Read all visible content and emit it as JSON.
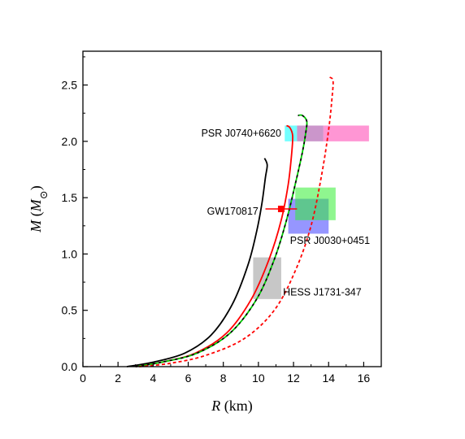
{
  "chart_data": {
    "type": "line",
    "title": "",
    "xlabel": "R (km)",
    "ylabel": "M (M⊙)",
    "xlim": [
      0,
      17
    ],
    "ylim": [
      0,
      2.8
    ],
    "xticks": [
      0,
      2,
      4,
      6,
      8,
      10,
      12,
      14,
      16
    ],
    "yticks": [
      0.0,
      0.5,
      1.0,
      1.5,
      2.0,
      2.5
    ],
    "xtick_labels": [
      "0",
      "2",
      "4",
      "6",
      "8",
      "10",
      "12",
      "14",
      "16"
    ],
    "ytick_labels": [
      "0.0",
      "0.5",
      "1.0",
      "1.5",
      "2.0",
      "2.5"
    ],
    "grid": false,
    "series": [
      {
        "color": "#000000",
        "style": "solid",
        "points": [
          [
            2.5,
            0.0
          ],
          [
            4.0,
            0.04
          ],
          [
            5.8,
            0.12
          ],
          [
            7.3,
            0.28
          ],
          [
            8.5,
            0.55
          ],
          [
            9.4,
            0.9
          ],
          [
            9.9,
            1.2
          ],
          [
            10.2,
            1.45
          ],
          [
            10.4,
            1.68
          ],
          [
            10.5,
            1.79
          ],
          [
            10.35,
            1.85
          ]
        ]
      },
      {
        "color": "#ff0000",
        "style": "solid",
        "points": [
          [
            3.0,
            0.0
          ],
          [
            4.5,
            0.04
          ],
          [
            6.4,
            0.12
          ],
          [
            8.2,
            0.3
          ],
          [
            9.6,
            0.6
          ],
          [
            10.6,
            0.95
          ],
          [
            11.3,
            1.3
          ],
          [
            11.7,
            1.62
          ],
          [
            11.9,
            1.9
          ],
          [
            11.95,
            2.05
          ],
          [
            11.8,
            2.12
          ],
          [
            11.6,
            2.14
          ]
        ]
      },
      {
        "color": "#000000",
        "style": "dashed",
        "points": [
          [
            3.0,
            0.0
          ],
          [
            4.5,
            0.04
          ],
          [
            6.5,
            0.12
          ],
          [
            8.4,
            0.3
          ],
          [
            9.9,
            0.6
          ],
          [
            10.9,
            0.95
          ],
          [
            11.6,
            1.3
          ],
          [
            12.1,
            1.62
          ],
          [
            12.5,
            1.9
          ],
          [
            12.7,
            2.08
          ],
          [
            12.75,
            2.18
          ],
          [
            12.5,
            2.23
          ],
          [
            12.25,
            2.23
          ]
        ]
      },
      {
        "color": "#00cc00",
        "style": "dashed",
        "points": [
          [
            3.0,
            0.0
          ],
          [
            4.5,
            0.04
          ],
          [
            6.5,
            0.12
          ],
          [
            8.4,
            0.3
          ],
          [
            9.9,
            0.6
          ],
          [
            10.9,
            0.95
          ],
          [
            11.6,
            1.3
          ],
          [
            12.1,
            1.62
          ],
          [
            12.5,
            1.9
          ],
          [
            12.7,
            2.08
          ],
          [
            12.75,
            2.18
          ],
          [
            12.5,
            2.23
          ],
          [
            12.25,
            2.23
          ]
        ]
      },
      {
        "color": "#ff0000",
        "style": "dashed",
        "points": [
          [
            3.2,
            0.0
          ],
          [
            5.0,
            0.03
          ],
          [
            7.0,
            0.1
          ],
          [
            9.2,
            0.25
          ],
          [
            10.9,
            0.5
          ],
          [
            12.1,
            0.85
          ],
          [
            13.0,
            1.25
          ],
          [
            13.6,
            1.7
          ],
          [
            14.0,
            2.1
          ],
          [
            14.2,
            2.4
          ],
          [
            14.25,
            2.54
          ],
          [
            14.05,
            2.57
          ]
        ]
      }
    ],
    "regions": [
      {
        "label": "PSR J0740+6620",
        "x": [
          11.5,
          12.2
        ],
        "y": [
          2.0,
          2.14
        ],
        "color": "#00ffff"
      },
      {
        "label": "PSR J0740+6620",
        "x": [
          12.2,
          13.7
        ],
        "y": [
          2.0,
          2.14
        ],
        "color": "#a040a0"
      },
      {
        "label": "PSR J0740+6620",
        "x": [
          13.7,
          16.3
        ],
        "y": [
          2.0,
          2.14
        ],
        "color": "#ff40b0"
      },
      {
        "label": "PSR J0030+0451",
        "x": [
          11.7,
          14.0
        ],
        "y": [
          1.18,
          1.49
        ],
        "color": "#4040ff"
      },
      {
        "label": "PSR J0030+0451",
        "x": [
          12.1,
          14.4
        ],
        "y": [
          1.3,
          1.59
        ],
        "color": "#33ee33"
      },
      {
        "label": "HESS J1731-347",
        "x": [
          9.7,
          11.3
        ],
        "y": [
          0.6,
          0.97
        ],
        "color": "#999999"
      }
    ],
    "error_points": [
      {
        "label": "GW170817",
        "x": 11.3,
        "y": 1.4,
        "xerr": [
          10.4,
          12.2
        ],
        "color": "#ff0000"
      }
    ],
    "annotations": [
      {
        "text": "PSR J0740+6620",
        "x": 11.3,
        "y": 2.07,
        "anchor": "end"
      },
      {
        "text": "GW170817",
        "x": 10.0,
        "y": 1.38,
        "anchor": "end"
      },
      {
        "text": "PSR J0030+0451",
        "x": 11.8,
        "y": 1.12,
        "anchor": "start"
      },
      {
        "text": "HESS J1731-347",
        "x": 11.4,
        "y": 0.66,
        "anchor": "start"
      }
    ]
  }
}
